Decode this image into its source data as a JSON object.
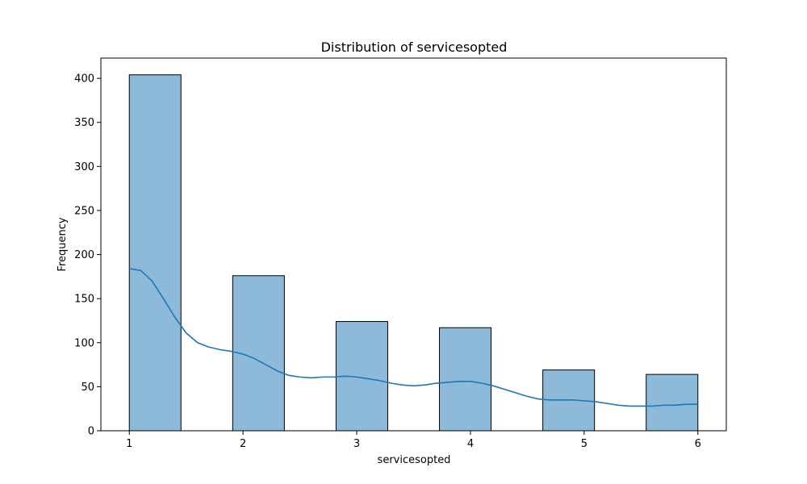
{
  "chart_data": {
    "type": "bar",
    "title": "Distribution of servicesopted",
    "xlabel": "servicesopted",
    "ylabel": "Frequency",
    "xlim": [
      0.75,
      6.25
    ],
    "ylim": [
      0,
      423
    ],
    "x_ticks": [
      1,
      2,
      3,
      4,
      5,
      6
    ],
    "y_ticks": [
      0,
      50,
      100,
      150,
      200,
      250,
      300,
      350,
      400
    ],
    "bins": [
      {
        "x0": 1.0,
        "x1": 1.4545,
        "value": 404
      },
      {
        "x0": 1.9091,
        "x1": 2.3636,
        "value": 176
      },
      {
        "x0": 2.8182,
        "x1": 3.2727,
        "value": 124
      },
      {
        "x0": 3.7273,
        "x1": 4.1818,
        "value": 117
      },
      {
        "x0": 4.6364,
        "x1": 5.0909,
        "value": 69
      },
      {
        "x0": 5.5455,
        "x1": 6.0,
        "value": 64
      }
    ],
    "kde": {
      "x": [
        1.0,
        1.1,
        1.2,
        1.3,
        1.4,
        1.5,
        1.6,
        1.7,
        1.8,
        1.9,
        2.0,
        2.1,
        2.2,
        2.3,
        2.4,
        2.5,
        2.6,
        2.7,
        2.8,
        2.9,
        3.0,
        3.1,
        3.2,
        3.3,
        3.4,
        3.5,
        3.6,
        3.7,
        3.8,
        3.9,
        4.0,
        4.1,
        4.2,
        4.3,
        4.4,
        4.5,
        4.6,
        4.7,
        4.8,
        4.9,
        5.0,
        5.1,
        5.2,
        5.3,
        5.4,
        5.5,
        5.6,
        5.7,
        5.8,
        5.9,
        6.0
      ],
      "y": [
        184,
        182,
        170,
        150,
        129,
        111,
        100,
        95,
        92,
        90,
        87,
        82,
        75,
        68,
        63,
        61,
        60,
        61,
        61,
        62,
        61,
        59,
        57,
        54,
        52,
        51,
        52,
        54,
        55,
        56,
        56,
        54,
        51,
        47,
        43,
        39,
        36,
        35,
        35,
        35,
        34,
        33,
        31,
        29,
        28,
        28,
        28,
        29,
        29,
        30,
        30
      ],
      "color": "#1f77b4"
    },
    "bar_color": "#8ebad9",
    "edge_color": "#000000",
    "grid": false,
    "legend": "none"
  }
}
